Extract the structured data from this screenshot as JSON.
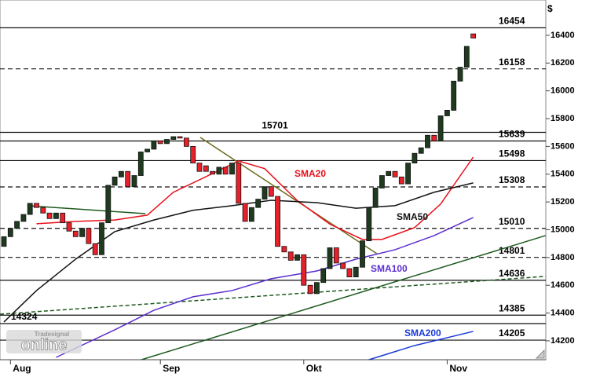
{
  "chart_data": {
    "type": "candlestick",
    "currency": "$",
    "logo": {
      "brand": "Tradesignal",
      "name": "online"
    },
    "categories": [
      null,
      "Aug",
      null,
      null,
      null,
      null,
      null,
      null,
      null,
      null,
      null,
      null,
      null,
      null,
      null,
      null,
      null,
      null,
      null,
      null,
      null,
      null,
      null,
      null,
      "Sep",
      null,
      null,
      null,
      null,
      null,
      null,
      null,
      null,
      null,
      null,
      null,
      null,
      null,
      null,
      null,
      null,
      null,
      null,
      null,
      null,
      null,
      "Okt",
      null,
      null,
      null,
      null,
      null,
      null,
      null,
      null,
      null,
      null,
      null,
      null,
      null,
      null,
      null,
      null,
      null,
      null,
      null,
      null,
      null,
      "Nov",
      null,
      null,
      null,
      null
    ],
    "open": [
      14880,
      14950,
      15010,
      15060,
      15110,
      15190,
      15160,
      15120,
      15080,
      15120,
      15050,
      14990,
      14950,
      15010,
      14900,
      14820,
      15050,
      15320,
      15380,
      15420,
      15310,
      15390,
      15560,
      15580,
      15640,
      15620,
      15650,
      15670,
      15660,
      15600,
      15480,
      15460,
      15420,
      15400,
      15450,
      15400,
      15480,
      15190,
      15060,
      15160,
      15220,
      15310,
      15240,
      14880,
      14840,
      14780,
      14820,
      14600,
      14540,
      14620,
      14720,
      14870,
      14760,
      14720,
      14660,
      14730,
      14920,
      15160,
      15300,
      15390,
      15420,
      15380,
      15330,
      15480,
      15550,
      15590,
      15680,
      15640,
      15820,
      15860,
      16070,
      16170,
      16410
    ],
    "close": [
      14950,
      15010,
      15060,
      15110,
      15190,
      15160,
      15120,
      15080,
      15120,
      15050,
      14990,
      14950,
      15010,
      14900,
      14820,
      15050,
      15320,
      15380,
      15420,
      15310,
      15390,
      15560,
      15580,
      15640,
      15620,
      15650,
      15670,
      15660,
      15600,
      15480,
      15420,
      15420,
      15400,
      15450,
      15400,
      15480,
      15190,
      15060,
      15160,
      15220,
      15310,
      15240,
      14880,
      14840,
      14780,
      14820,
      14600,
      14540,
      14620,
      14720,
      14870,
      14760,
      14720,
      14660,
      14730,
      14920,
      15160,
      15300,
      15390,
      15420,
      15380,
      15330,
      15480,
      15550,
      15590,
      15680,
      15640,
      15820,
      15860,
      16070,
      16170,
      16320,
      16380
    ],
    "up_color": "#1f3a1f",
    "down_color": "#e8202a",
    "series": [
      {
        "name": "SMA20",
        "color": "#e8101a",
        "x": [
          5,
          11,
          17,
          22,
          26,
          31,
          36,
          40,
          45,
          50,
          55,
          58,
          63,
          67,
          72
        ],
        "values": [
          15043,
          15060,
          15070,
          15105,
          15270,
          15382,
          15495,
          15440,
          15210,
          15040,
          14930,
          14930,
          15015,
          15185,
          15523
        ]
      },
      {
        "name": "SMA50",
        "color": "#111111",
        "x": [
          0,
          5,
          11,
          17,
          23,
          29,
          35,
          41,
          48,
          54,
          60,
          66,
          72
        ],
        "values": [
          14336,
          14562,
          14788,
          14986,
          15070,
          15140,
          15173,
          15212,
          15195,
          15155,
          15173,
          15270,
          15337
        ]
      },
      {
        "name": "SMA100",
        "color": "#5a2ed0",
        "x": [
          8,
          17,
          23,
          29,
          35,
          41,
          48,
          54,
          60,
          66,
          72
        ],
        "values": [
          14081,
          14279,
          14420,
          14517,
          14562,
          14647,
          14703,
          14788,
          14856,
          14958,
          15088
        ]
      },
      {
        "name": "SMA200",
        "color": "#1a3ad8",
        "x": [
          56,
          63,
          72
        ],
        "values": [
          14064,
          14166,
          14268
        ]
      }
    ],
    "levels": [
      {
        "value": 16454,
        "style": "solid",
        "label_side": "right"
      },
      {
        "value": 16158,
        "style": "dashed",
        "label_side": "right"
      },
      {
        "value": 15701,
        "style": "solid",
        "label_side": "center"
      },
      {
        "value": 15639,
        "style": "solid",
        "label_side": "right"
      },
      {
        "value": 15498,
        "style": "solid",
        "label_side": "right"
      },
      {
        "value": 15308,
        "style": "dashed",
        "label_side": "right"
      },
      {
        "value": 15010,
        "style": "dashed",
        "label_side": "right"
      },
      {
        "value": 14801,
        "style": "dashed",
        "label_side": "right"
      },
      {
        "value": 14636,
        "style": "solid",
        "label_side": "right"
      },
      {
        "value": 14385,
        "style": "solid",
        "label_side": "right"
      },
      {
        "value": 14324,
        "style": "solid",
        "label_side": "left"
      },
      {
        "value": 14205,
        "style": "solid",
        "label_side": "right"
      }
    ],
    "trend_lines": [
      {
        "color": "#1f5a1f",
        "style": "dashed",
        "x": [
          -0.6,
          83.1
        ],
        "values": [
          14392,
          14664
        ]
      },
      {
        "color": "#1f5a1f",
        "style": "solid",
        "x": [
          21.1,
          83.1
        ],
        "values": [
          14064,
          14958
        ]
      },
      {
        "color": "#1f5a1f",
        "style": "solid",
        "x": [
          3.6,
          21.7
        ],
        "values": [
          15173,
          15116
        ]
      },
      {
        "color": "#6b6b1f",
        "style": "solid",
        "x": [
          30.1,
          57.2
        ],
        "values": [
          15665,
          14828
        ]
      }
    ],
    "ylim": [
      14064,
      16654
    ],
    "yticks": [
      14200,
      14400,
      14600,
      14800,
      15000,
      15200,
      15400,
      15600,
      15800,
      16000,
      16200,
      16400
    ]
  }
}
